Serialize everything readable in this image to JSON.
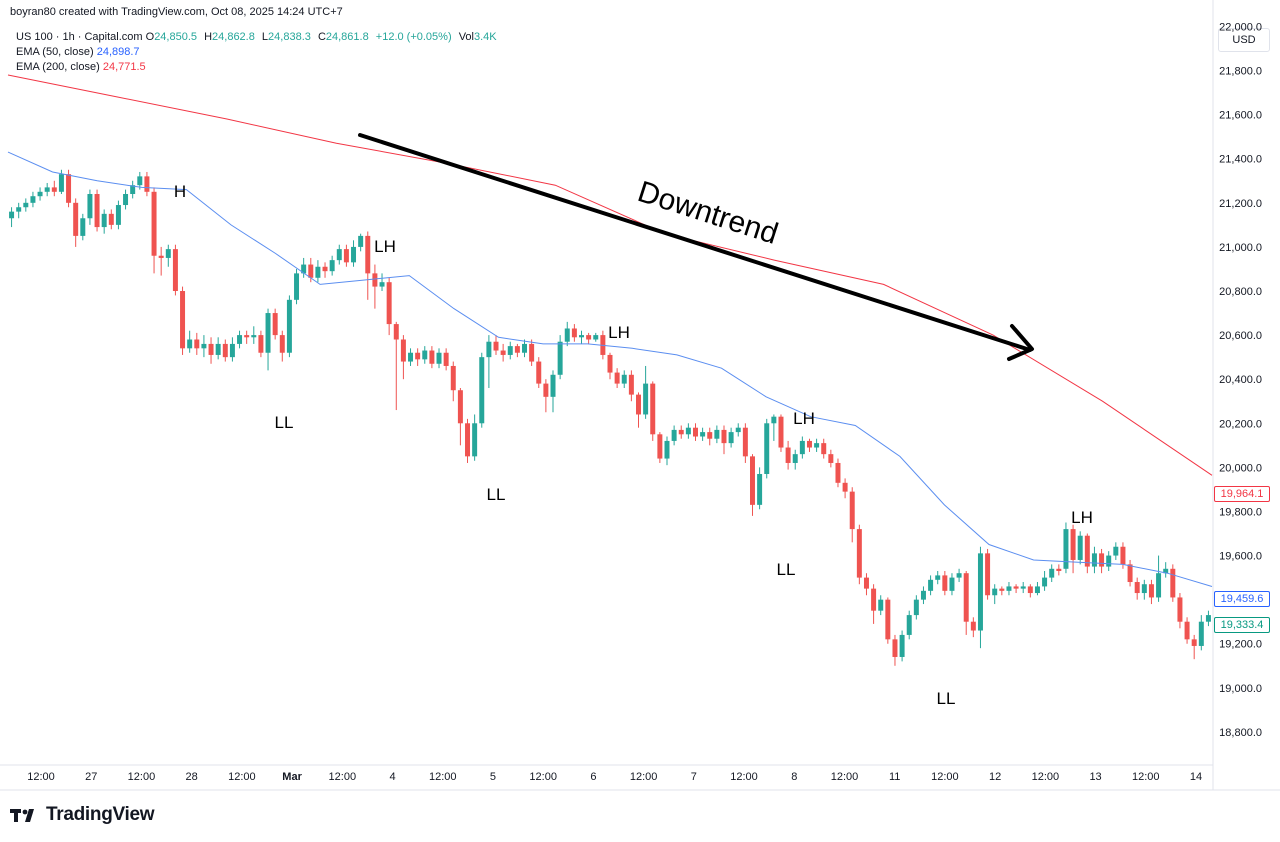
{
  "credit": "boyran80 created with TradingView.com, Oct 08, 2025 14:24 UTC+7",
  "legend": {
    "symbol": "US 100 · 1h · Capital.com",
    "o_label": "O",
    "o": "24,850.5",
    "h_label": "H",
    "h": "24,862.8",
    "l_label": "L",
    "l": "24,838.3",
    "c_label": "C",
    "c": "24,861.8",
    "change": "+12.0 (+0.05%)",
    "vol_label": "Vol",
    "vol": "3.4K",
    "ema50_label": "EMA (50, close)",
    "ema50_value": "24,898.7",
    "ema200_label": "EMA (200, close)",
    "ema200_value": "24,771.5"
  },
  "currency": "USD",
  "brand": "TradingView",
  "colors": {
    "up": "#26a69a",
    "down": "#ef5350",
    "ema50": "#5b8ef0",
    "ema200": "#f23645",
    "text": "#131722",
    "grid": "#f0f3fa"
  },
  "chart_data": {
    "type": "candlestick",
    "title": "",
    "ylim": [
      18650,
      22120
    ],
    "y_ticks": [
      "18,800.0",
      "19,000.0",
      "19,200.0",
      "19,400.0",
      "19,600.0",
      "19,800.0",
      "20,000.0",
      "20,200.0",
      "20,400.0",
      "20,600.0",
      "20,800.0",
      "21,000.0",
      "21,200.0",
      "21,400.0",
      "21,600.0",
      "21,800.0",
      "22,000.0"
    ],
    "x_ticks": [
      "12:00",
      "27",
      "12:00",
      "28",
      "12:00",
      "Mar",
      "12:00",
      "4",
      "12:00",
      "5",
      "12:00",
      "6",
      "12:00",
      "7",
      "12:00",
      "8",
      "12:00",
      "11",
      "12:00",
      "12",
      "12:00",
      "13",
      "12:00",
      "14"
    ],
    "x_ticks_bold": [
      "Mar"
    ],
    "ema50": [
      21430,
      21340,
      21300,
      21270,
      21260,
      21100,
      20970,
      20830,
      20850,
      20870,
      20720,
      20590,
      20560,
      20560,
      20540,
      20510,
      20450,
      20320,
      20230,
      20190,
      20050,
      19830,
      19650,
      19580,
      19570,
      19560,
      19520,
      19459.6
    ],
    "ema200": [
      21780,
      21680,
      21580,
      21470,
      21380,
      21280,
      21060,
      20940,
      20830,
      20600,
      20300,
      19964.1
    ],
    "candles": [
      [
        21130,
        21160,
        21090,
        21180
      ],
      [
        21160,
        21180,
        21130,
        21200
      ],
      [
        21180,
        21200,
        21160,
        21220
      ],
      [
        21200,
        21230,
        21180,
        21250
      ],
      [
        21230,
        21250,
        21210,
        21270
      ],
      [
        21250,
        21270,
        21230,
        21290
      ],
      [
        21270,
        21250,
        21230,
        21300
      ],
      [
        21250,
        21330,
        21240,
        21350
      ],
      [
        21330,
        21200,
        21180,
        21350
      ],
      [
        21200,
        21050,
        21000,
        21220
      ],
      [
        21050,
        21130,
        21030,
        21150
      ],
      [
        21130,
        21240,
        21100,
        21260
      ],
      [
        21240,
        21090,
        21070,
        21260
      ],
      [
        21090,
        21150,
        21060,
        21170
      ],
      [
        21150,
        21100,
        21080,
        21170
      ],
      [
        21100,
        21190,
        21080,
        21210
      ],
      [
        21190,
        21240,
        21170,
        21260
      ],
      [
        21240,
        21280,
        21220,
        21300
      ],
      [
        21280,
        21320,
        21260,
        21340
      ],
      [
        21320,
        21250,
        21230,
        21340
      ],
      [
        21250,
        20960,
        20880,
        21270
      ],
      [
        20960,
        20950,
        20870,
        21000
      ],
      [
        20950,
        20990,
        20910,
        21010
      ],
      [
        20990,
        20800,
        20780,
        21010
      ],
      [
        20800,
        20540,
        20510,
        20820
      ],
      [
        20540,
        20580,
        20520,
        20620
      ],
      [
        20580,
        20540,
        20510,
        20610
      ],
      [
        20540,
        20560,
        20500,
        20600
      ],
      [
        20560,
        20510,
        20470,
        20590
      ],
      [
        20510,
        20560,
        20490,
        20590
      ],
      [
        20560,
        20500,
        20480,
        20580
      ],
      [
        20500,
        20560,
        20480,
        20590
      ],
      [
        20560,
        20600,
        20540,
        20620
      ],
      [
        20600,
        20590,
        20560,
        20620
      ],
      [
        20590,
        20600,
        20560,
        20640
      ],
      [
        20600,
        20520,
        20500,
        20620
      ],
      [
        20520,
        20700,
        20440,
        20720
      ],
      [
        20700,
        20600,
        20580,
        20720
      ],
      [
        20600,
        20520,
        20480,
        20620
      ],
      [
        20520,
        20760,
        20500,
        20780
      ],
      [
        20760,
        20880,
        20740,
        20900
      ],
      [
        20880,
        20920,
        20860,
        20950
      ],
      [
        20920,
        20860,
        20840,
        20950
      ],
      [
        20860,
        20910,
        20840,
        20940
      ],
      [
        20910,
        20890,
        20860,
        20930
      ],
      [
        20890,
        20940,
        20870,
        20960
      ],
      [
        20940,
        20990,
        20920,
        21010
      ],
      [
        20990,
        20930,
        20910,
        21010
      ],
      [
        20930,
        21000,
        20910,
        21030
      ],
      [
        21000,
        21050,
        20980,
        21060
      ],
      [
        21050,
        20880,
        20760,
        21070
      ],
      [
        20880,
        20820,
        20720,
        20920
      ],
      [
        20820,
        20840,
        20800,
        20880
      ],
      [
        20840,
        20650,
        20600,
        20860
      ],
      [
        20650,
        20580,
        20260,
        20660
      ],
      [
        20580,
        20480,
        20400,
        20600
      ],
      [
        20480,
        20520,
        20460,
        20540
      ],
      [
        20520,
        20490,
        20460,
        20540
      ],
      [
        20490,
        20530,
        20470,
        20550
      ],
      [
        20530,
        20470,
        20450,
        20550
      ],
      [
        20470,
        20520,
        20450,
        20540
      ],
      [
        20520,
        20460,
        20440,
        20540
      ],
      [
        20460,
        20350,
        20300,
        20480
      ],
      [
        20350,
        20200,
        20100,
        20360
      ],
      [
        20200,
        20050,
        20020,
        20220
      ],
      [
        20050,
        20200,
        20030,
        20240
      ],
      [
        20200,
        20500,
        20180,
        20520
      ],
      [
        20500,
        20570,
        20360,
        20600
      ],
      [
        20570,
        20530,
        20510,
        20600
      ],
      [
        20530,
        20510,
        20480,
        20560
      ],
      [
        20510,
        20550,
        20490,
        20570
      ],
      [
        20550,
        20520,
        20500,
        20560
      ],
      [
        20520,
        20560,
        20500,
        20580
      ],
      [
        20560,
        20480,
        20460,
        20580
      ],
      [
        20480,
        20380,
        20360,
        20500
      ],
      [
        20380,
        20320,
        20250,
        20400
      ],
      [
        20320,
        20420,
        20250,
        20440
      ],
      [
        20420,
        20570,
        20400,
        20600
      ],
      [
        20570,
        20630,
        20550,
        20660
      ],
      [
        20630,
        20590,
        20570,
        20650
      ],
      [
        20590,
        20600,
        20560,
        20620
      ],
      [
        20600,
        20580,
        20560,
        20610
      ],
      [
        20580,
        20600,
        20570,
        20610
      ],
      [
        20600,
        20510,
        20490,
        20620
      ],
      [
        20510,
        20430,
        20400,
        20520
      ],
      [
        20430,
        20380,
        20360,
        20450
      ],
      [
        20380,
        20420,
        20360,
        20440
      ],
      [
        20420,
        20330,
        20300,
        20440
      ],
      [
        20330,
        20240,
        20180,
        20340
      ],
      [
        20240,
        20380,
        20220,
        20460
      ],
      [
        20380,
        20150,
        20120,
        20390
      ],
      [
        20150,
        20040,
        20020,
        20160
      ],
      [
        20040,
        20120,
        20010,
        20140
      ],
      [
        20120,
        20170,
        20100,
        20190
      ],
      [
        20170,
        20150,
        20130,
        20190
      ],
      [
        20150,
        20180,
        20130,
        20200
      ],
      [
        20180,
        20140,
        20120,
        20200
      ],
      [
        20140,
        20160,
        20120,
        20180
      ],
      [
        20160,
        20130,
        20100,
        20180
      ],
      [
        20130,
        20170,
        20110,
        20190
      ],
      [
        20170,
        20110,
        20060,
        20190
      ],
      [
        20110,
        20160,
        20090,
        20180
      ],
      [
        20160,
        20180,
        20140,
        20200
      ],
      [
        20180,
        20050,
        20020,
        20200
      ],
      [
        20050,
        19830,
        19780,
        20060
      ],
      [
        19830,
        19970,
        19810,
        20000
      ],
      [
        19970,
        20200,
        19950,
        20220
      ],
      [
        20200,
        20230,
        20120,
        20240
      ],
      [
        20230,
        20090,
        20070,
        20240
      ],
      [
        20090,
        20020,
        19990,
        20120
      ],
      [
        20020,
        20060,
        19990,
        20080
      ],
      [
        20060,
        20120,
        20040,
        20140
      ],
      [
        20120,
        20090,
        20070,
        20130
      ],
      [
        20090,
        20110,
        20070,
        20130
      ],
      [
        20110,
        20060,
        20040,
        20130
      ],
      [
        20060,
        20020,
        20000,
        20080
      ],
      [
        20020,
        19930,
        19910,
        20040
      ],
      [
        19930,
        19890,
        19860,
        19950
      ],
      [
        19890,
        19720,
        19660,
        19910
      ],
      [
        19720,
        19500,
        19470,
        19740
      ],
      [
        19500,
        19450,
        19420,
        19520
      ],
      [
        19450,
        19350,
        19290,
        19470
      ],
      [
        19350,
        19400,
        19330,
        19420
      ],
      [
        19400,
        19220,
        19200,
        19410
      ],
      [
        19220,
        19140,
        19100,
        19240
      ],
      [
        19140,
        19240,
        19120,
        19260
      ],
      [
        19240,
        19330,
        19220,
        19350
      ],
      [
        19330,
        19400,
        19310,
        19420
      ],
      [
        19400,
        19440,
        19380,
        19460
      ],
      [
        19440,
        19490,
        19420,
        19510
      ],
      [
        19490,
        19510,
        19470,
        19530
      ],
      [
        19510,
        19440,
        19420,
        19530
      ],
      [
        19440,
        19500,
        19420,
        19520
      ],
      [
        19500,
        19520,
        19480,
        19540
      ],
      [
        19520,
        19300,
        19240,
        19530
      ],
      [
        19300,
        19260,
        19230,
        19320
      ],
      [
        19260,
        19610,
        19180,
        19640
      ],
      [
        19610,
        19420,
        19400,
        19630
      ],
      [
        19420,
        19450,
        19380,
        19470
      ],
      [
        19450,
        19440,
        19420,
        19460
      ],
      [
        19440,
        19460,
        19420,
        19480
      ],
      [
        19460,
        19450,
        19430,
        19470
      ],
      [
        19450,
        19460,
        19430,
        19480
      ],
      [
        19460,
        19430,
        19410,
        19470
      ],
      [
        19430,
        19460,
        19420,
        19480
      ],
      [
        19460,
        19500,
        19440,
        19530
      ],
      [
        19500,
        19540,
        19480,
        19560
      ],
      [
        19540,
        19530,
        19510,
        19560
      ],
      [
        19540,
        19720,
        19520,
        19750
      ],
      [
        19720,
        19580,
        19520,
        19740
      ],
      [
        19580,
        19690,
        19560,
        19710
      ],
      [
        19690,
        19550,
        19520,
        19700
      ],
      [
        19550,
        19610,
        19520,
        19640
      ],
      [
        19610,
        19550,
        19520,
        19630
      ],
      [
        19550,
        19600,
        19530,
        19620
      ],
      [
        19600,
        19640,
        19580,
        19660
      ],
      [
        19640,
        19560,
        19540,
        19660
      ],
      [
        19560,
        19480,
        19460,
        19580
      ],
      [
        19480,
        19430,
        19400,
        19500
      ],
      [
        19430,
        19470,
        19400,
        19490
      ],
      [
        19470,
        19410,
        19380,
        19490
      ],
      [
        19410,
        19520,
        19390,
        19600
      ],
      [
        19520,
        19540,
        19500,
        19570
      ],
      [
        19540,
        19410,
        19390,
        19560
      ],
      [
        19410,
        19300,
        19270,
        19430
      ],
      [
        19300,
        19220,
        19200,
        19320
      ],
      [
        19220,
        19190,
        19130,
        19240
      ],
      [
        19190,
        19300,
        19170,
        19330
      ],
      [
        19300,
        19330,
        19280,
        19350
      ]
    ],
    "annotations": [
      "H",
      "LH",
      "LL",
      "LL",
      "LH",
      "LL",
      "LH",
      "LL",
      "LL",
      "LH",
      "Downtrend"
    ],
    "price_tags": {
      "ema200": "19,964.1",
      "ema50": "19,459.6",
      "last": "19,333.4"
    }
  }
}
